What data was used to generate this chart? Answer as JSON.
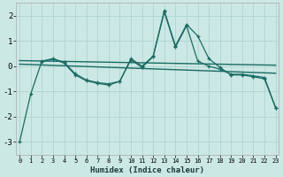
{
  "xlabel": "Humidex (Indice chaleur)",
  "bg_color": "#cce8e4",
  "grid_color": "#b2d8d4",
  "line_color": "#1a6b64",
  "line1_y": [
    -3.0,
    -1.1,
    0.2,
    0.3,
    0.15,
    -0.3,
    -0.55,
    -0.65,
    -0.7,
    -0.6,
    0.3,
    0.0,
    0.4,
    2.2,
    0.8,
    1.65,
    1.2,
    0.3,
    -0.05,
    -0.35,
    -0.35,
    -0.42,
    -0.5,
    -1.65
  ],
  "line2_y": [
    null,
    null,
    0.18,
    0.28,
    0.12,
    -0.35,
    -0.58,
    -0.68,
    -0.75,
    -0.6,
    0.25,
    -0.05,
    0.38,
    2.15,
    0.75,
    1.6,
    0.2,
    0.0,
    -0.12,
    -0.32,
    -0.32,
    -0.38,
    -0.45,
    -1.65
  ],
  "trend1_x": [
    0,
    23
  ],
  "trend1_y": [
    0.22,
    0.04
  ],
  "trend2_x": [
    0,
    23
  ],
  "trend2_y": [
    0.08,
    -0.28
  ],
  "ylim": [
    -3.5,
    2.5
  ],
  "xlim": [
    -0.3,
    23.3
  ],
  "yticks": [
    -3,
    -2,
    -1,
    0,
    1,
    2
  ],
  "xticks": [
    0,
    1,
    2,
    3,
    4,
    5,
    6,
    7,
    8,
    9,
    10,
    11,
    12,
    13,
    14,
    15,
    16,
    17,
    18,
    19,
    20,
    21,
    22,
    23
  ],
  "ylabel_fontsize": 6.5,
  "tick_labelsize": 5.5
}
